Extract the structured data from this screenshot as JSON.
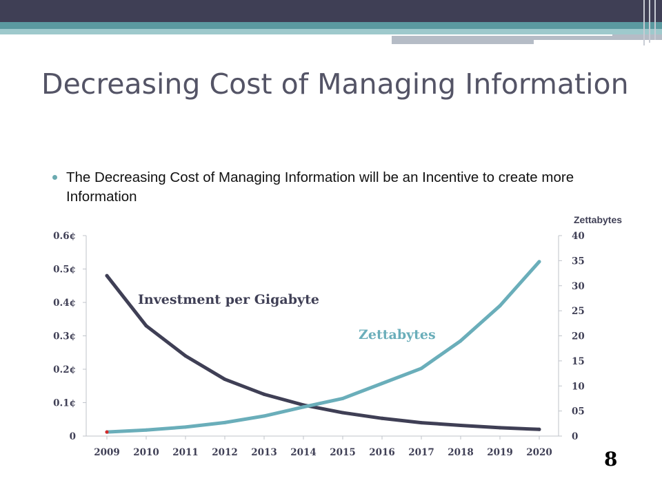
{
  "slide": {
    "title": "Decreasing Cost of Managing Information",
    "bullet": "The Decreasing Cost of Managing Information will be an Incentive to create more Information",
    "page_number": "8"
  },
  "colors": {
    "header_dark": "#3f3f55",
    "accent_teal": "#5b9aa0",
    "series_investment": "#3f3f55",
    "series_zettabytes": "#6aaeba",
    "label_zettabytes": "#6aaeba"
  },
  "chart_data": {
    "type": "line",
    "x": [
      "2009",
      "2010",
      "2011",
      "2012",
      "2013",
      "2014",
      "2015",
      "2016",
      "2017",
      "2018",
      "2019",
      "2020"
    ],
    "y_left": {
      "ticks": [
        "0",
        "0.1¢",
        "0.2¢",
        "0.3¢",
        "0.4¢",
        "0.5¢",
        "0.6¢"
      ],
      "tick_values": [
        0,
        0.1,
        0.2,
        0.3,
        0.4,
        0.5,
        0.6
      ],
      "ylim": [
        0,
        0.6
      ],
      "unit": "¢"
    },
    "y_right": {
      "title": "Zettabytes",
      "ticks": [
        "0",
        "05",
        "10",
        "15",
        "20",
        "25",
        "30",
        "35",
        "40"
      ],
      "tick_values": [
        0,
        5,
        10,
        15,
        20,
        25,
        30,
        35,
        40
      ],
      "ylim": [
        0,
        40
      ]
    },
    "series": [
      {
        "name": "Investment per Gigabyte",
        "axis": "left",
        "values": [
          0.48,
          0.33,
          0.24,
          0.17,
          0.125,
          0.093,
          0.07,
          0.053,
          0.04,
          0.032,
          0.025,
          0.02
        ]
      },
      {
        "name": "Zettabytes",
        "axis": "right",
        "values": [
          0.8,
          1.2,
          1.8,
          2.7,
          4.0,
          5.8,
          7.5,
          10.5,
          13.5,
          19.0,
          26.0,
          34.8
        ]
      }
    ],
    "grid": false
  }
}
